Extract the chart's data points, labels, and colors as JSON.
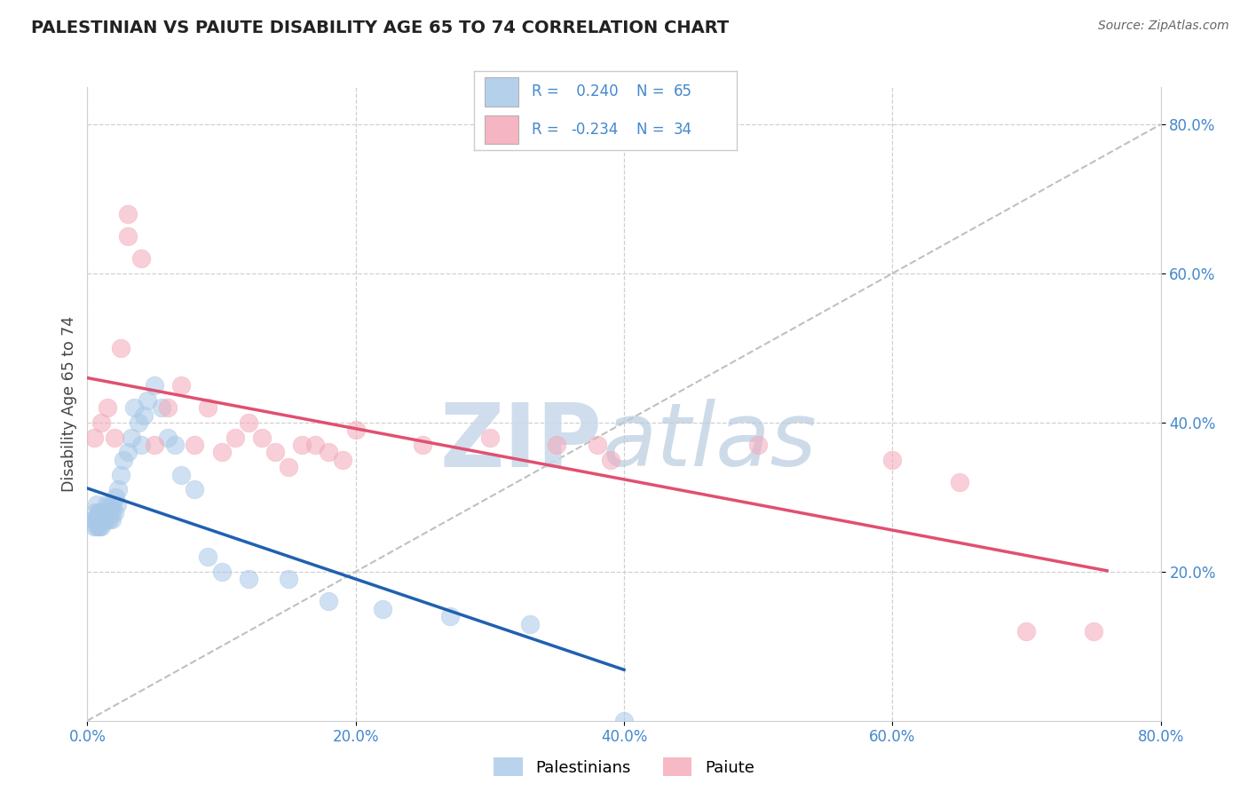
{
  "title": "PALESTINIAN VS PAIUTE DISABILITY AGE 65 TO 74 CORRELATION CHART",
  "source_text": "Source: ZipAtlas.com",
  "ylabel": "Disability Age 65 to 74",
  "xlim": [
    0.0,
    0.8
  ],
  "ylim": [
    0.0,
    0.85
  ],
  "xtick_vals": [
    0.0,
    0.2,
    0.4,
    0.6,
    0.8
  ],
  "xtick_labels": [
    "0.0%",
    "20.0%",
    "40.0%",
    "60.0%",
    "80.0%"
  ],
  "ytick_vals": [
    0.2,
    0.4,
    0.6,
    0.8
  ],
  "ytick_labels": [
    "20.0%",
    "40.0%",
    "60.0%",
    "80.0%"
  ],
  "r_palestinian": 0.24,
  "n_palestinian": 65,
  "r_paiute": -0.234,
  "n_paiute": 34,
  "palestinian_color": "#a8c8e8",
  "paiute_color": "#f4a8b8",
  "palestinian_line_color": "#2060b0",
  "paiute_line_color": "#e05070",
  "diag_line_color": "#c0c0c0",
  "background_color": "#ffffff",
  "watermark_color": "#ccdded",
  "grid_color": "#d0d0d0",
  "title_color": "#222222",
  "tick_color": "#4488cc",
  "ylabel_color": "#444444",
  "source_color": "#666666",
  "legend_text_color": "#4488cc",
  "scatter_size": 220,
  "scatter_alpha": 0.55,
  "palestinian_x": [
    0.005,
    0.005,
    0.006,
    0.006,
    0.007,
    0.007,
    0.007,
    0.008,
    0.008,
    0.008,
    0.009,
    0.009,
    0.009,
    0.01,
    0.01,
    0.01,
    0.01,
    0.01,
    0.01,
    0.011,
    0.011,
    0.011,
    0.012,
    0.012,
    0.012,
    0.013,
    0.013,
    0.014,
    0.014,
    0.015,
    0.015,
    0.016,
    0.016,
    0.017,
    0.018,
    0.018,
    0.019,
    0.02,
    0.021,
    0.022,
    0.023,
    0.025,
    0.027,
    0.03,
    0.033,
    0.035,
    0.038,
    0.04,
    0.042,
    0.045,
    0.05,
    0.055,
    0.06,
    0.065,
    0.07,
    0.08,
    0.09,
    0.1,
    0.12,
    0.15,
    0.18,
    0.22,
    0.27,
    0.33,
    0.4
  ],
  "palestinian_y": [
    0.26,
    0.27,
    0.28,
    0.27,
    0.29,
    0.27,
    0.26,
    0.28,
    0.27,
    0.26,
    0.27,
    0.26,
    0.28,
    0.27,
    0.28,
    0.27,
    0.26,
    0.27,
    0.28,
    0.27,
    0.27,
    0.28,
    0.27,
    0.28,
    0.27,
    0.28,
    0.27,
    0.28,
    0.29,
    0.27,
    0.28,
    0.27,
    0.28,
    0.29,
    0.28,
    0.27,
    0.29,
    0.28,
    0.3,
    0.29,
    0.31,
    0.33,
    0.35,
    0.36,
    0.38,
    0.42,
    0.4,
    0.37,
    0.41,
    0.43,
    0.45,
    0.42,
    0.38,
    0.37,
    0.33,
    0.31,
    0.22,
    0.2,
    0.19,
    0.19,
    0.16,
    0.15,
    0.14,
    0.13,
    0.0
  ],
  "paiute_x": [
    0.005,
    0.01,
    0.015,
    0.02,
    0.025,
    0.03,
    0.03,
    0.04,
    0.05,
    0.06,
    0.07,
    0.08,
    0.09,
    0.1,
    0.11,
    0.12,
    0.13,
    0.14,
    0.15,
    0.16,
    0.17,
    0.18,
    0.19,
    0.2,
    0.25,
    0.3,
    0.35,
    0.38,
    0.39,
    0.5,
    0.6,
    0.65,
    0.7,
    0.75
  ],
  "paiute_y": [
    0.38,
    0.4,
    0.42,
    0.38,
    0.5,
    0.68,
    0.65,
    0.62,
    0.37,
    0.42,
    0.45,
    0.37,
    0.42,
    0.36,
    0.38,
    0.4,
    0.38,
    0.36,
    0.34,
    0.37,
    0.37,
    0.36,
    0.35,
    0.39,
    0.37,
    0.38,
    0.37,
    0.37,
    0.35,
    0.37,
    0.35,
    0.32,
    0.12,
    0.12
  ]
}
